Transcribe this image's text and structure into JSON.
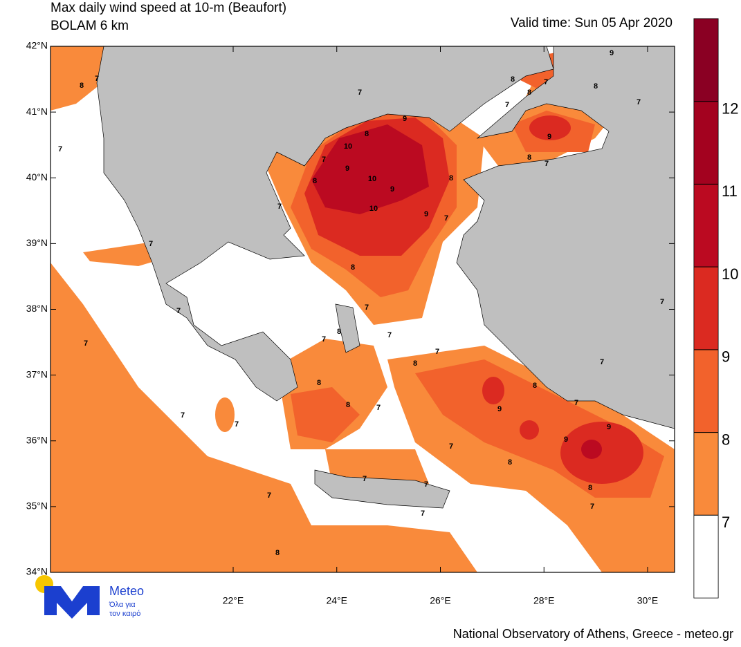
{
  "header": {
    "title": "Max daily wind speed at 10-m (Beaufort)",
    "model": "BOLAM 6 km",
    "valid_time": "Valid time: Sun 05 Apr 2020"
  },
  "map": {
    "lat_ticks": [
      {
        "value": 42,
        "label": "42°N"
      },
      {
        "value": 41,
        "label": "41°N"
      },
      {
        "value": 40,
        "label": "40°N"
      },
      {
        "value": 39,
        "label": "39°N"
      },
      {
        "value": 38,
        "label": "38°N"
      },
      {
        "value": 37,
        "label": "37°N"
      },
      {
        "value": 36,
        "label": "36°N"
      },
      {
        "value": 35,
        "label": "35°N"
      },
      {
        "value": 34,
        "label": "34°N"
      }
    ],
    "lon_ticks": [
      {
        "value": 22,
        "label": "22°E"
      },
      {
        "value": 24,
        "label": "24°E"
      },
      {
        "value": 26,
        "label": "26°E"
      },
      {
        "value": 28,
        "label": "28°E"
      },
      {
        "value": 30,
        "label": "30°E"
      }
    ],
    "contour_labels": [
      8,
      7,
      7,
      7,
      9,
      8,
      10,
      7,
      9,
      8,
      10,
      9,
      10,
      8,
      9,
      7,
      7,
      7,
      8,
      7,
      8,
      7,
      7,
      7,
      8,
      8,
      7,
      7,
      7,
      8,
      7,
      8,
      9,
      7,
      9,
      9,
      7,
      8,
      8,
      7,
      7,
      7,
      7,
      7,
      8,
      9,
      8,
      8,
      7,
      7,
      8,
      7,
      9,
      8,
      7,
      7,
      7,
      7
    ]
  },
  "colorbar": {
    "levels": [
      7,
      8,
      9,
      10,
      11,
      12
    ],
    "colors": [
      "#ffffff",
      "#f98a3b",
      "#f2622c",
      "#db2a21",
      "#bb0a21",
      "#a3021f",
      "#8a0023"
    ]
  },
  "logo": {
    "name": "Meteo",
    "tagline_1": "Όλα για",
    "tagline_2": "τον καιρό"
  },
  "footer": "National Observatory of Athens, Greece - meteo.gr"
}
